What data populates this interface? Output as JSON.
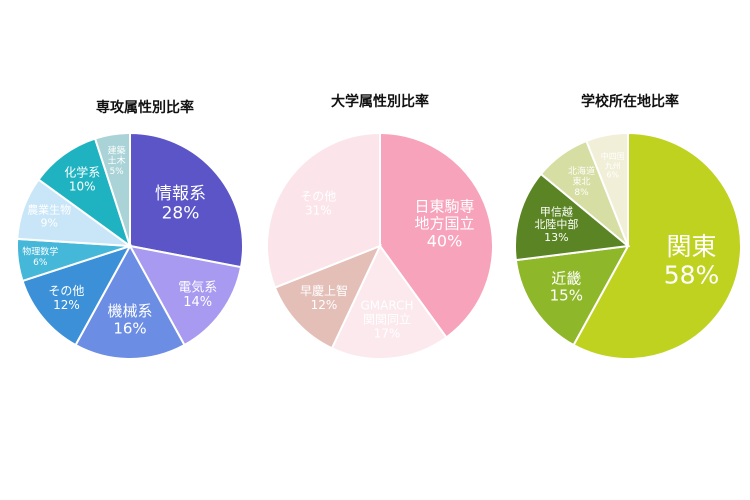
{
  "chart_data": [
    {
      "type": "pie",
      "title": "専攻属性別比率",
      "slices": [
        {
          "label": [
            "情報系"
          ],
          "percent_label": "28%",
          "value": 28,
          "color": "#5b55c8"
        },
        {
          "label": [
            "電気系"
          ],
          "percent_label": "14%",
          "value": 14,
          "color": "#a79af0"
        },
        {
          "label": [
            "機械系"
          ],
          "percent_label": "16%",
          "value": 16,
          "color": "#6b8de3"
        },
        {
          "label": [
            "その他"
          ],
          "percent_label": "12%",
          "value": 12,
          "color": "#3b90d7"
        },
        {
          "label": [
            "物理数学"
          ],
          "percent_label": "6%",
          "value": 6,
          "color": "#45b7d9"
        },
        {
          "label": [
            "農業生物"
          ],
          "percent_label": "9%",
          "value": 9,
          "color": "#c9e6f8"
        },
        {
          "label": [
            "化学系"
          ],
          "percent_label": "10%",
          "value": 10,
          "color": "#1fb3c1"
        },
        {
          "label": [
            "建築",
            "土木"
          ],
          "percent_label": "5%",
          "value": 5,
          "color": "#a9d3d6"
        }
      ]
    },
    {
      "type": "pie",
      "title": "大学属性別比率",
      "slices": [
        {
          "label": [
            "日東駒専",
            "地方国立"
          ],
          "percent_label": "40%",
          "value": 40,
          "color": "#f7a3bb"
        },
        {
          "label": [
            "GMARCH",
            "関関同立"
          ],
          "percent_label": "17%",
          "value": 17,
          "color": "#fbe9ee"
        },
        {
          "label": [
            "早慶上智"
          ],
          "percent_label": "12%",
          "value": 12,
          "color": "#e4bfb8"
        },
        {
          "label": [
            "その他"
          ],
          "percent_label": "31%",
          "value": 31,
          "color": "#fbe4ea"
        }
      ]
    },
    {
      "type": "pie",
      "title": "学校所在地比率",
      "slices": [
        {
          "label": [
            "関東"
          ],
          "percent_label": "58%",
          "value": 58,
          "color": "#bfd21f"
        },
        {
          "label": [
            "近畿"
          ],
          "percent_label": "15%",
          "value": 15,
          "color": "#8fb72a"
        },
        {
          "label": [
            "甲信越",
            "北陸中部"
          ],
          "percent_label": "13%",
          "value": 13,
          "color": "#5b8424"
        },
        {
          "label": [
            "北海道",
            "東北"
          ],
          "percent_label": "8%",
          "value": 8,
          "color": "#d6dea3"
        },
        {
          "label": [
            "中四国",
            "九州"
          ],
          "percent_label": "6%",
          "value": 6,
          "color": "#f1efd8"
        }
      ]
    }
  ]
}
